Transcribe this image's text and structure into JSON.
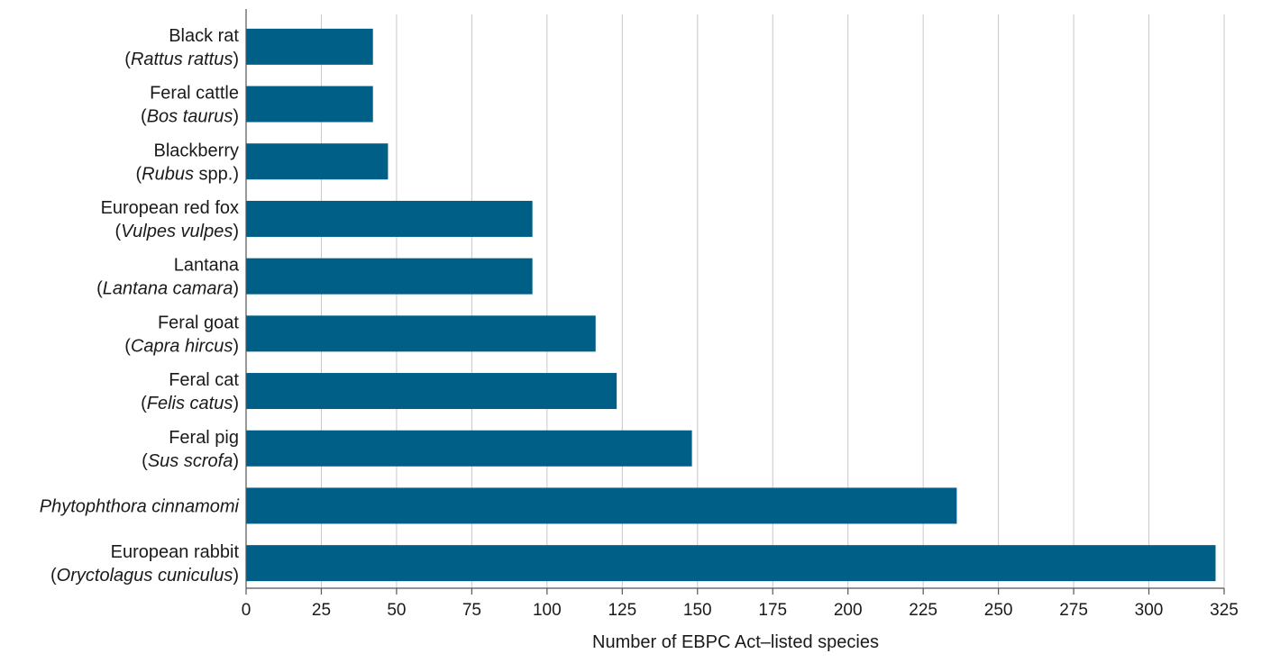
{
  "chart_data": {
    "type": "bar",
    "orientation": "horizontal",
    "bar_color": "#005f87",
    "categories": [
      {
        "common": "Black rat",
        "scientific": "Rattus rattus",
        "suffix": ""
      },
      {
        "common": "Feral cattle",
        "scientific": "Bos taurus",
        "suffix": ""
      },
      {
        "common": "Blackberry",
        "scientific": "Rubus",
        "suffix": " spp."
      },
      {
        "common": "European red fox",
        "scientific": "Vulpes vulpes",
        "suffix": ""
      },
      {
        "common": "Lantana",
        "scientific": "Lantana camara",
        "suffix": ""
      },
      {
        "common": "Feral goat",
        "scientific": "Capra hircus",
        "suffix": ""
      },
      {
        "common": "Feral cat",
        "scientific": "Felis catus",
        "suffix": ""
      },
      {
        "common": "Feral pig",
        "scientific": "Sus scrofa",
        "suffix": ""
      },
      {
        "common": "",
        "scientific": "Phytophthora cinnamomi",
        "suffix": "",
        "italic_only": true
      },
      {
        "common": "European rabbit",
        "scientific": "Oryctolagus cuniculus",
        "suffix": ""
      }
    ],
    "values": [
      42,
      42,
      47,
      95,
      95,
      116,
      123,
      148,
      236,
      322
    ],
    "xlabel": "Number of EBPC Act–listed species",
    "xlim": [
      0,
      325
    ],
    "xticks": [
      0,
      25,
      50,
      75,
      100,
      125,
      150,
      175,
      200,
      225,
      250,
      275,
      300,
      325
    ],
    "grid": "vertical"
  }
}
